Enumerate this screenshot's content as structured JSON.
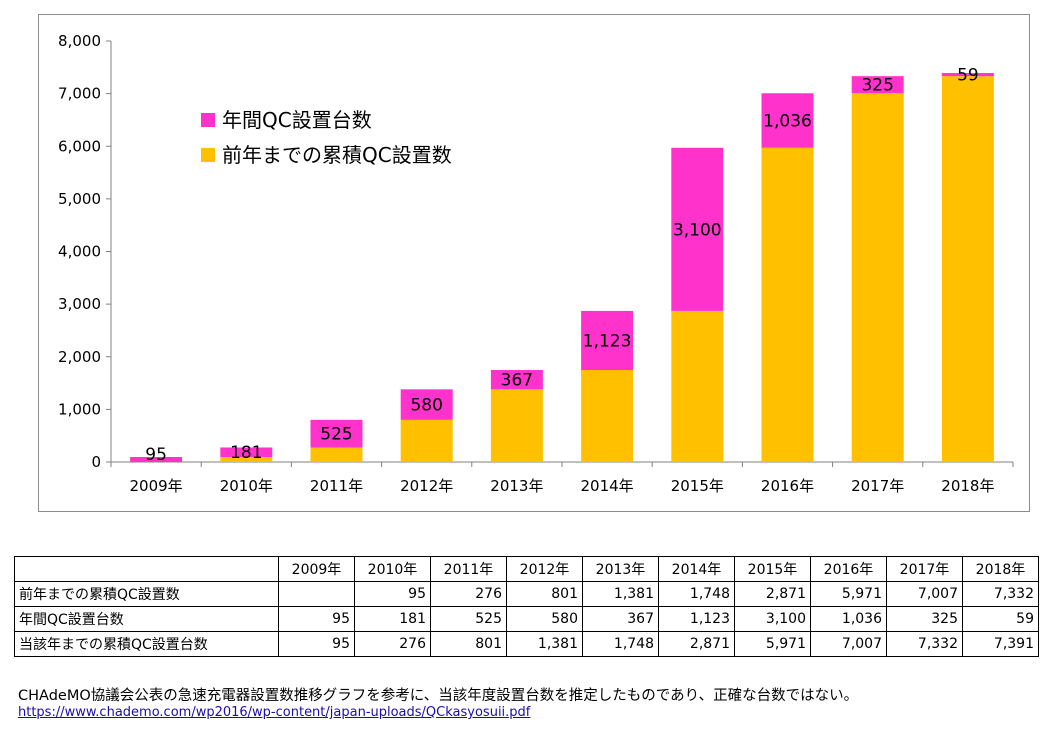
{
  "chart_data": {
    "type": "bar",
    "stacked": true,
    "categories": [
      "2009年",
      "2010年",
      "2011年",
      "2012年",
      "2013年",
      "2014年",
      "2015年",
      "2016年",
      "2017年",
      "2018年"
    ],
    "series": [
      {
        "name": "前年までの累積QC設置数",
        "color": "#FFC000",
        "values": [
          0,
          95,
          276,
          801,
          1381,
          1748,
          2871,
          5971,
          7007,
          7332
        ]
      },
      {
        "name": "年間QC設置台数",
        "color": "#FF33CC",
        "values": [
          95,
          181,
          525,
          580,
          367,
          1123,
          3100,
          1036,
          325,
          59
        ]
      }
    ],
    "data_labels": [
      "95",
      "181",
      "525",
      "580",
      "367",
      "1,123",
      "3,100",
      "1,036",
      "325",
      "59"
    ],
    "ylim": [
      0,
      8000
    ],
    "yticks": [
      "0",
      "1,000",
      "2,000",
      "3,000",
      "4,000",
      "5,000",
      "6,000",
      "7,000",
      "8,000"
    ],
    "grid": false,
    "legend": [
      {
        "label": "年間QC設置台数",
        "color": "#FF33CC"
      },
      {
        "label": "前年までの累積QC設置数",
        "color": "#FFC000"
      }
    ],
    "legend_position": "upper-left"
  },
  "table": {
    "corner": "",
    "header": [
      "2009年",
      "2010年",
      "2011年",
      "2012年",
      "2013年",
      "2014年",
      "2015年",
      "2016年",
      "2017年",
      "2018年"
    ],
    "rows": [
      {
        "label": "前年までの累積QC設置数",
        "values": [
          "",
          "95",
          "276",
          "801",
          "1,381",
          "1,748",
          "2,871",
          "5,971",
          "7,007",
          "7,332"
        ]
      },
      {
        "label": "年間QC設置台数",
        "values": [
          "95",
          "181",
          "525",
          "580",
          "367",
          "1,123",
          "3,100",
          "1,036",
          "325",
          "59"
        ]
      },
      {
        "label": "当該年までの累積QC設置台数",
        "values": [
          "95",
          "276",
          "801",
          "1,381",
          "1,748",
          "2,871",
          "5,971",
          "7,007",
          "7,332",
          "7,391"
        ]
      }
    ]
  },
  "footnote": "CHAdeMO協議会公表の急速充電器設置数推移グラフを参考に、当該年度設置台数を推定したものであり、正確な台数ではない。",
  "source_url": "https://www.chademo.com/wp2016/wp-content/japan-uploads/QCkasyosuii.pdf"
}
